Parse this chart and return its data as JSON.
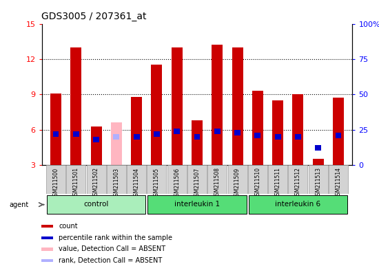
{
  "title": "GDS3005 / 207361_at",
  "samples": [
    "GSM211500",
    "GSM211501",
    "GSM211502",
    "GSM211503",
    "GSM211504",
    "GSM211505",
    "GSM211506",
    "GSM211507",
    "GSM211508",
    "GSM211509",
    "GSM211510",
    "GSM211511",
    "GSM211512",
    "GSM211513",
    "GSM211514"
  ],
  "count_values": [
    9.1,
    13.0,
    6.3,
    6.6,
    8.8,
    11.5,
    13.0,
    6.8,
    13.2,
    13.0,
    9.3,
    8.5,
    9.0,
    3.5,
    8.7
  ],
  "rank_values": [
    22,
    22,
    18,
    20,
    20,
    22,
    24,
    20,
    24,
    23,
    21,
    20,
    20,
    12,
    21
  ],
  "absent_count": [
    false,
    false,
    false,
    true,
    false,
    false,
    false,
    false,
    false,
    false,
    false,
    false,
    false,
    false,
    false
  ],
  "absent_rank": [
    false,
    false,
    false,
    true,
    false,
    false,
    false,
    false,
    false,
    false,
    false,
    false,
    false,
    false,
    false
  ],
  "groups": [
    {
      "label": "control",
      "start": 0,
      "end": 4,
      "color": "#aaeebb"
    },
    {
      "label": "interleukin 1",
      "start": 5,
      "end": 9,
      "color": "#55dd77"
    },
    {
      "label": "interleukin 6",
      "start": 10,
      "end": 14,
      "color": "#55dd77"
    }
  ],
  "ylim_left": [
    3,
    15
  ],
  "ylim_right": [
    0,
    100
  ],
  "yticks_left": [
    3,
    6,
    9,
    12,
    15
  ],
  "yticks_right": [
    0,
    25,
    50,
    75,
    100
  ],
  "bar_width": 0.55,
  "count_color": "#cc0000",
  "rank_color": "#0000cc",
  "absent_count_color": "#ffb6c1",
  "absent_rank_color": "#b0b0ff",
  "agent_label": "agent",
  "legend_items": [
    {
      "color": "#cc0000",
      "label": "count"
    },
    {
      "color": "#0000cc",
      "label": "percentile rank within the sample"
    },
    {
      "color": "#ffb6c1",
      "label": "value, Detection Call = ABSENT"
    },
    {
      "color": "#b0b0ff",
      "label": "rank, Detection Call = ABSENT"
    }
  ]
}
